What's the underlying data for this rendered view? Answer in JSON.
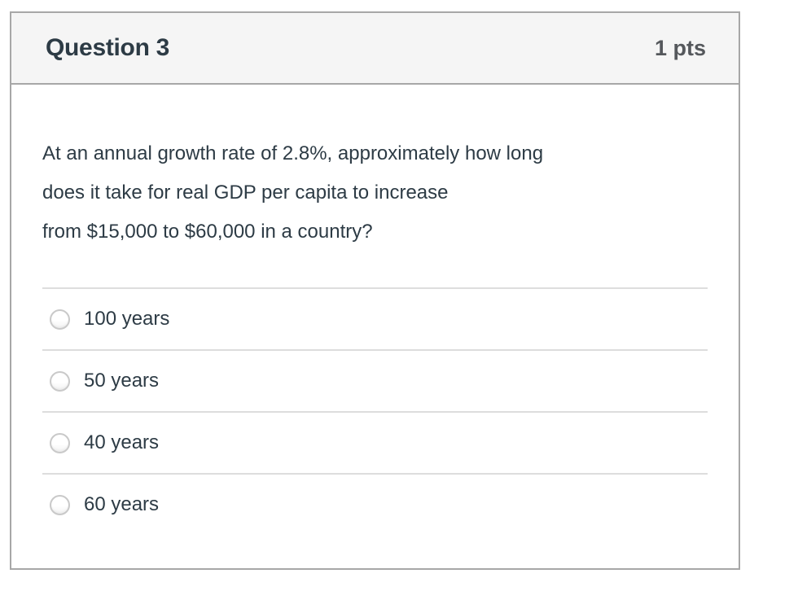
{
  "question": {
    "title": "Question 3",
    "points_label": "1 pts",
    "text": "At an annual growth rate of 2.8%, approximately how long\ndoes it take for real GDP per capita to increase\nfrom $15,000 to $60,000 in a country?",
    "options": [
      {
        "label": "100 years",
        "selected": false
      },
      {
        "label": "50 years",
        "selected": false
      },
      {
        "label": "40 years",
        "selected": false
      },
      {
        "label": "60 years",
        "selected": false
      }
    ]
  },
  "colors": {
    "card_border": "#a7a7a7",
    "header_background": "#f5f5f5",
    "title_text": "#2d3b45",
    "points_text": "#55585c",
    "body_text": "#2d3b45",
    "divider": "#dddddd",
    "radio_border": "#c9c9c9",
    "page_background": "#ffffff"
  }
}
